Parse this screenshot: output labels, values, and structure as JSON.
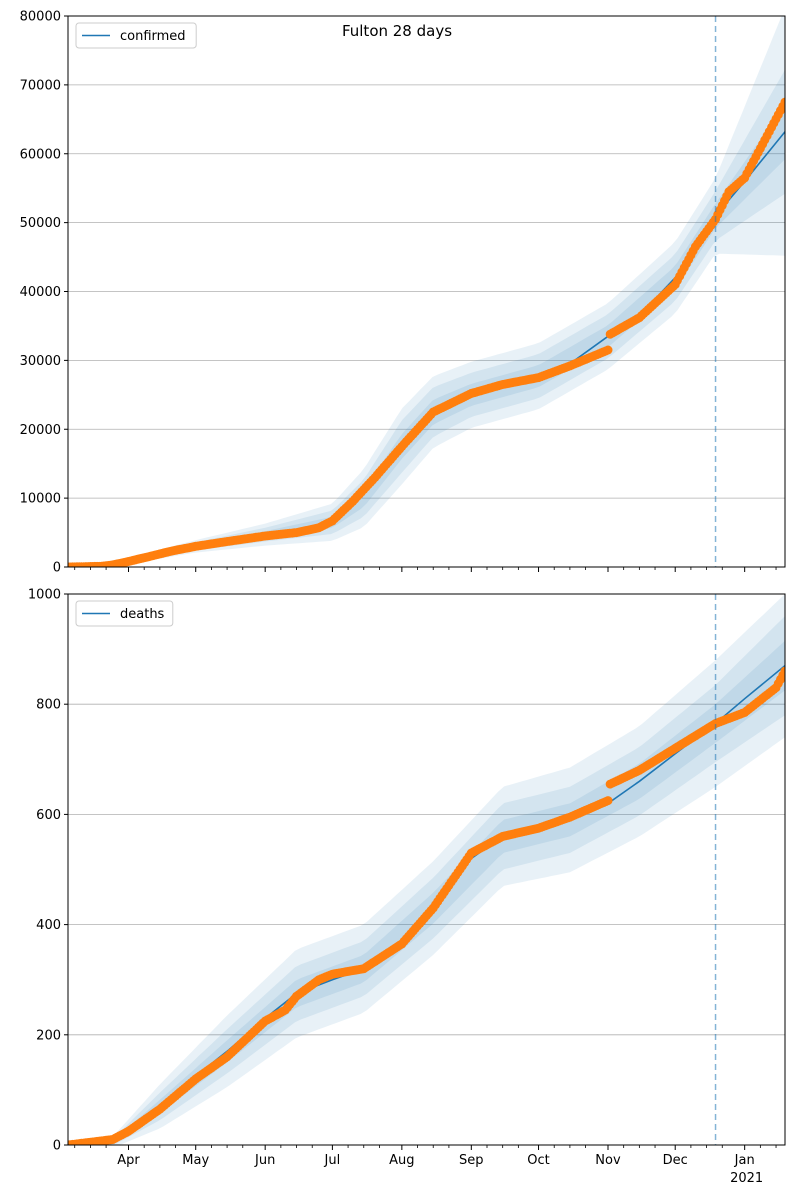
{
  "title": "Fulton 28 days",
  "x_axis": {
    "month_labels": [
      "Apr",
      "May",
      "Jun",
      "Jul",
      "Aug",
      "Sep",
      "Oct",
      "Nov",
      "Dec",
      "Jan"
    ],
    "year_label": "2021",
    "range": [
      "2020-03-05",
      "2021-01-19"
    ],
    "forecast_start": "2020-12-19"
  },
  "colors": {
    "model_line": "#1f77b4",
    "band": "#1f77b4",
    "observed": "#ff7f0e",
    "grid": "#b0b0b0",
    "forecast_marker": "#1f77b4"
  },
  "chart_data": [
    {
      "type": "line",
      "legend": "confirmed",
      "legend_position": "top-left",
      "grid": "y",
      "ylim": [
        0,
        80000
      ],
      "yticks": [
        0,
        10000,
        20000,
        30000,
        40000,
        50000,
        60000,
        70000,
        80000
      ],
      "model": {
        "x": [
          "2020-03-05",
          "2020-03-20",
          "2020-04-01",
          "2020-04-15",
          "2020-05-01",
          "2020-05-15",
          "2020-06-01",
          "2020-06-15",
          "2020-07-01",
          "2020-07-10",
          "2020-07-20",
          "2020-08-01",
          "2020-08-15",
          "2020-09-01",
          "2020-09-15",
          "2020-10-01",
          "2020-10-15",
          "2020-11-01",
          "2020-11-15",
          "2020-12-01",
          "2020-12-10",
          "2020-12-19",
          "2021-01-01",
          "2021-01-19"
        ],
        "y": [
          0,
          200,
          900,
          2000,
          3000,
          3700,
          4700,
          5300,
          6500,
          9000,
          12500,
          17500,
          22500,
          25000,
          26500,
          27700,
          29500,
          33500,
          36500,
          42000,
          46500,
          51000,
          56000,
          63200
        ]
      },
      "bands": {
        "x": [
          "2020-03-05",
          "2020-04-01",
          "2020-05-01",
          "2020-06-01",
          "2020-07-01",
          "2020-07-15",
          "2020-08-01",
          "2020-08-15",
          "2020-09-01",
          "2020-10-01",
          "2020-11-01",
          "2020-12-01",
          "2020-12-19",
          "2021-01-19"
        ],
        "center": [
          0,
          900,
          3000,
          4700,
          6500,
          10000,
          17500,
          22500,
          25000,
          27700,
          33500,
          42000,
          51000,
          63200
        ],
        "inner_halfwidth": [
          0,
          150,
          300,
          500,
          800,
          1300,
          1800,
          1800,
          1600,
          1600,
          1600,
          1700,
          1800,
          4000
        ],
        "middle_halfwidth": [
          0,
          300,
          600,
          1000,
          1700,
          2700,
          3800,
          3600,
          3200,
          3200,
          3200,
          3400,
          3600,
          9000
        ],
        "outer_halfwidth": [
          0,
          450,
          900,
          1600,
          2700,
          4200,
          5500,
          5200,
          4800,
          4800,
          4800,
          5200,
          5500,
          18000
        ]
      },
      "observed": {
        "x": [
          "2020-03-05",
          "2020-03-20",
          "2020-03-25",
          "2020-04-01",
          "2020-04-10",
          "2020-04-20",
          "2020-05-01",
          "2020-05-15",
          "2020-06-01",
          "2020-06-15",
          "2020-06-25",
          "2020-07-01",
          "2020-07-10",
          "2020-07-20",
          "2020-08-01",
          "2020-08-15",
          "2020-09-01",
          "2020-09-15",
          "2020-10-01",
          "2020-10-15",
          "2020-11-01",
          "2020-11-02",
          "2020-11-15",
          "2020-12-01",
          "2020-12-10",
          "2020-12-19",
          "2020-12-25",
          "2021-01-01",
          "2021-01-10",
          "2021-01-19"
        ],
        "y": [
          0,
          100,
          300,
          800,
          1500,
          2300,
          3000,
          3700,
          4500,
          5000,
          5700,
          6700,
          9500,
          13000,
          17500,
          22500,
          25200,
          26500,
          27500,
          29200,
          31500,
          33800,
          36200,
          41000,
          46500,
          50500,
          54500,
          56500,
          62000,
          67500
        ]
      }
    },
    {
      "type": "line",
      "legend": "deaths",
      "legend_position": "top-left",
      "grid": "y",
      "ylim": [
        0,
        1000
      ],
      "yticks": [
        0,
        200,
        400,
        600,
        800,
        1000
      ],
      "model": {
        "x": [
          "2020-03-05",
          "2020-03-25",
          "2020-04-01",
          "2020-04-15",
          "2020-05-01",
          "2020-05-15",
          "2020-06-01",
          "2020-06-15",
          "2020-07-01",
          "2020-07-15",
          "2020-08-01",
          "2020-08-15",
          "2020-09-01",
          "2020-09-15",
          "2020-10-01",
          "2020-10-15",
          "2020-11-01",
          "2020-11-15",
          "2020-12-01",
          "2020-12-19",
          "2021-01-01",
          "2021-01-19"
        ],
        "y": [
          0,
          5,
          20,
          70,
          125,
          170,
          230,
          275,
          300,
          320,
          360,
          430,
          520,
          560,
          575,
          590,
          620,
          660,
          710,
          765,
          810,
          870
        ]
      },
      "bands": {
        "x": [
          "2020-03-05",
          "2020-03-25",
          "2020-04-15",
          "2020-05-15",
          "2020-06-15",
          "2020-07-15",
          "2020-08-15",
          "2020-09-15",
          "2020-10-15",
          "2020-11-15",
          "2020-12-19",
          "2021-01-19"
        ],
        "center": [
          0,
          5,
          70,
          170,
          275,
          320,
          430,
          560,
          590,
          660,
          765,
          870
        ],
        "inner_halfwidth": [
          0,
          3,
          12,
          20,
          25,
          25,
          28,
          30,
          30,
          32,
          35,
          45
        ],
        "middle_halfwidth": [
          0,
          6,
          25,
          40,
          50,
          50,
          55,
          60,
          60,
          62,
          70,
          90
        ],
        "outer_halfwidth": [
          0,
          10,
          40,
          65,
          80,
          80,
          85,
          90,
          95,
          100,
          115,
          130
        ]
      },
      "observed": {
        "x": [
          "2020-03-05",
          "2020-03-25",
          "2020-04-01",
          "2020-04-15",
          "2020-05-01",
          "2020-05-15",
          "2020-06-01",
          "2020-06-10",
          "2020-06-15",
          "2020-06-25",
          "2020-07-01",
          "2020-07-15",
          "2020-08-01",
          "2020-08-15",
          "2020-09-01",
          "2020-09-15",
          "2020-10-01",
          "2020-10-15",
          "2020-11-01",
          "2020-11-02",
          "2020-11-15",
          "2020-12-01",
          "2020-12-19",
          "2021-01-01",
          "2021-01-15",
          "2021-01-19"
        ],
        "y": [
          0,
          10,
          25,
          65,
          120,
          160,
          225,
          245,
          270,
          300,
          310,
          320,
          365,
          430,
          530,
          560,
          575,
          595,
          625,
          655,
          680,
          720,
          765,
          785,
          830,
          860
        ]
      }
    }
  ]
}
